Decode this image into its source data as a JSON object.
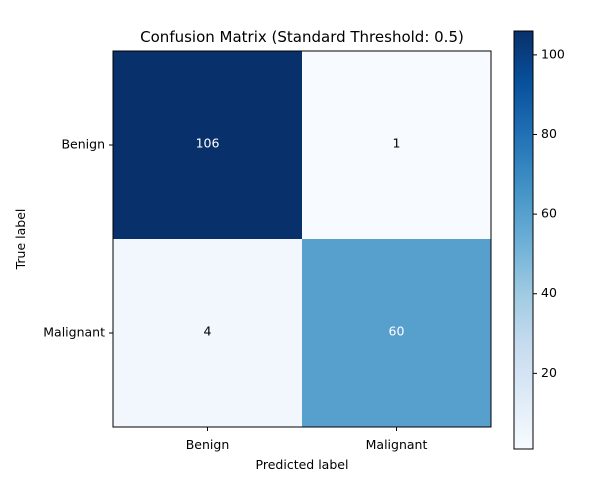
{
  "chart_data": {
    "type": "heatmap",
    "title": "Confusion Matrix (Standard Threshold: 0.5)",
    "xlabel": "Predicted label",
    "ylabel": "True label",
    "x_categories": [
      "Benign",
      "Malignant"
    ],
    "y_categories": [
      "Benign",
      "Malignant"
    ],
    "values": [
      [
        106,
        1
      ],
      [
        4,
        60
      ]
    ],
    "colormap": "Blues",
    "color_range": [
      1,
      106
    ],
    "colorbar_ticks": [
      20,
      40,
      60,
      80,
      100
    ]
  }
}
